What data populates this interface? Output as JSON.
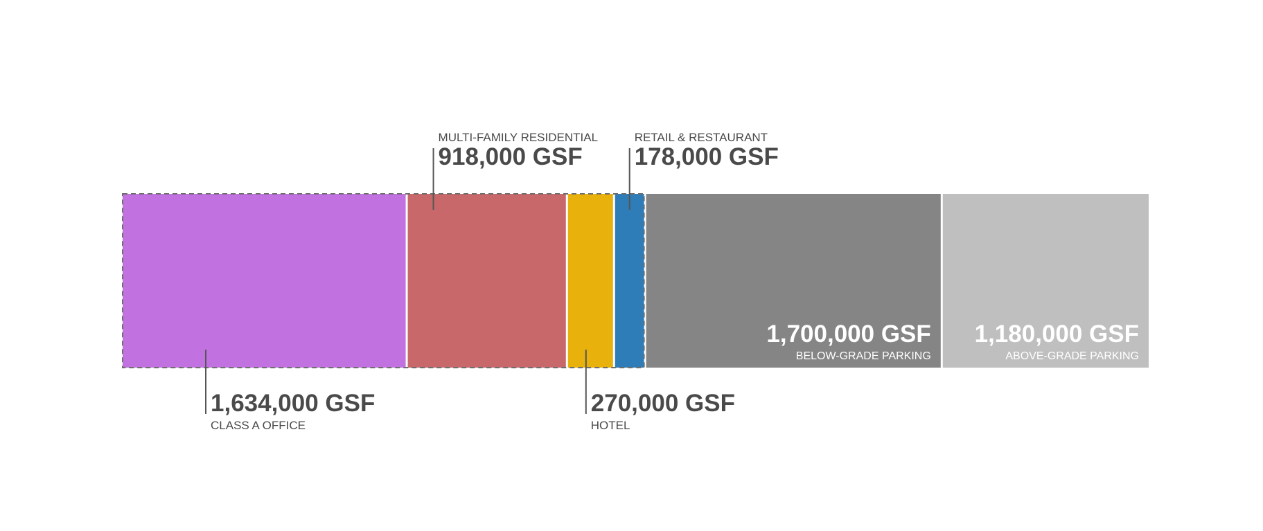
{
  "chart_data": {
    "type": "bar",
    "orientation": "horizontal-stacked",
    "units": "GSF",
    "segments": [
      {
        "label": "CLASS A OFFICE",
        "value": 1634000,
        "value_text": "1,634,000 GSF",
        "color": "#c272e0",
        "label_position": "bottom"
      },
      {
        "label": "MULTI-FAMILY RESIDENTIAL",
        "value": 918000,
        "value_text": "918,000 GSF",
        "color": "#c8686a",
        "label_position": "top"
      },
      {
        "label": "HOTEL",
        "value": 270000,
        "value_text": "270,000 GSF",
        "color": "#e8b10c",
        "label_position": "bottom"
      },
      {
        "label": "RETAIL & RESTAURANT",
        "value": 178000,
        "value_text": "178,000 GSF",
        "color": "#2f7db8",
        "label_position": "top"
      },
      {
        "label": "BELOW-GRADE PARKING",
        "value": 1700000,
        "value_text": "1,700,000 GSF",
        "color": "#858585",
        "label_position": "inside"
      },
      {
        "label": "ABOVE-GRADE PARKING",
        "value": 1180000,
        "value_text": "1,180,000 GSF",
        "color": "#bfbfbf",
        "label_position": "inside"
      }
    ],
    "dashed_outline_segments": [
      0,
      1,
      2,
      3
    ],
    "grid": false,
    "legend": "none"
  }
}
